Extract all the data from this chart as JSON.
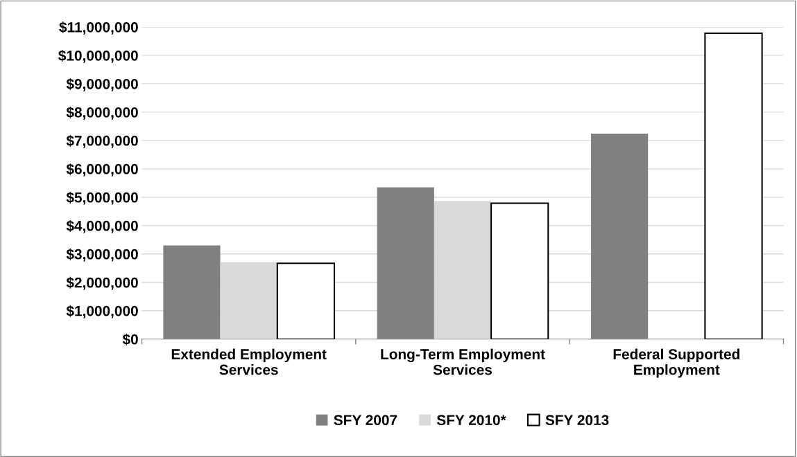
{
  "chart_data": {
    "type": "bar",
    "categories": [
      "Extended Employment Services",
      "Long-Term Employment Services",
      "Federal Supported Employment"
    ],
    "series": [
      {
        "name": "SFY 2007",
        "color": "#808080",
        "values": [
          3300000,
          5350000,
          7240000
        ]
      },
      {
        "name": "SFY 2010*",
        "color": "#d9d9d9",
        "values": [
          2710000,
          4870000,
          null
        ]
      },
      {
        "name": "SFY 2013",
        "color": "#ffffff",
        "values": [
          2670000,
          4790000,
          10780000
        ]
      }
    ],
    "ylim": [
      0,
      11000000
    ],
    "yticks": [
      {
        "value": 0,
        "label": "$0"
      },
      {
        "value": 1000000,
        "label": "$1,000,000"
      },
      {
        "value": 2000000,
        "label": "$2,000,000"
      },
      {
        "value": 3000000,
        "label": "$3,000,000"
      },
      {
        "value": 4000000,
        "label": "$4,000,000"
      },
      {
        "value": 5000000,
        "label": "$5,000,000"
      },
      {
        "value": 6000000,
        "label": "$6,000,000"
      },
      {
        "value": 7000000,
        "label": "$7,000,000"
      },
      {
        "value": 8000000,
        "label": "$8,000,000"
      },
      {
        "value": 9000000,
        "label": "$9,000,000"
      },
      {
        "value": 10000000,
        "label": "$10,000,000"
      },
      {
        "value": 11000000,
        "label": "$11,000,000"
      }
    ],
    "grid": "y",
    "legend": "bottom"
  }
}
